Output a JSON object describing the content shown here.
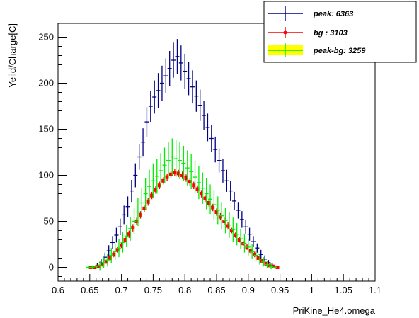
{
  "chart_data": {
    "type": "scatter",
    "xlabel": "PriKine_He4.omega",
    "ylabel": "Yeild/Charge[C]",
    "xlim": [
      0.6,
      1.1
    ],
    "ylim": [
      -15,
      265
    ],
    "x_ticks": [
      "0.6",
      "0.65",
      "0.7",
      "0.75",
      "0.8",
      "0.85",
      "0.9",
      "0.95",
      "1",
      "1.05",
      "1.1"
    ],
    "y_ticks": [
      "0",
      "50",
      "100",
      "150",
      "200",
      "250"
    ],
    "legend_position": "top-right",
    "series": [
      {
        "name": "peak: 6363",
        "color": "#000080",
        "marker": "cross",
        "points": [
          [
            0.65,
            0,
            1
          ],
          [
            0.656,
            0,
            1
          ],
          [
            0.662,
            2,
            3
          ],
          [
            0.668,
            5,
            4
          ],
          [
            0.674,
            11,
            5
          ],
          [
            0.68,
            18,
            6
          ],
          [
            0.686,
            27,
            7
          ],
          [
            0.692,
            35,
            8
          ],
          [
            0.698,
            44,
            9
          ],
          [
            0.704,
            57,
            10
          ],
          [
            0.71,
            66,
            11
          ],
          [
            0.716,
            83,
            12
          ],
          [
            0.722,
            100,
            13
          ],
          [
            0.728,
            120,
            14
          ],
          [
            0.734,
            136,
            15
          ],
          [
            0.74,
            158,
            16
          ],
          [
            0.746,
            175,
            17
          ],
          [
            0.752,
            185,
            18
          ],
          [
            0.758,
            192,
            19
          ],
          [
            0.764,
            200,
            19
          ],
          [
            0.77,
            208,
            19
          ],
          [
            0.776,
            216,
            19
          ],
          [
            0.782,
            225,
            19
          ],
          [
            0.788,
            229,
            19
          ],
          [
            0.794,
            222,
            19
          ],
          [
            0.8,
            213,
            19
          ],
          [
            0.806,
            205,
            18
          ],
          [
            0.812,
            196,
            18
          ],
          [
            0.818,
            186,
            17
          ],
          [
            0.824,
            176,
            17
          ],
          [
            0.83,
            165,
            16
          ],
          [
            0.836,
            152,
            15
          ],
          [
            0.842,
            140,
            15
          ],
          [
            0.848,
            128,
            14
          ],
          [
            0.854,
            116,
            13
          ],
          [
            0.86,
            105,
            13
          ],
          [
            0.866,
            94,
            12
          ],
          [
            0.872,
            83,
            11
          ],
          [
            0.878,
            72,
            10
          ],
          [
            0.884,
            62,
            9
          ],
          [
            0.89,
            52,
            9
          ],
          [
            0.896,
            44,
            8
          ],
          [
            0.902,
            36,
            7
          ],
          [
            0.908,
            28,
            6
          ],
          [
            0.914,
            21,
            5
          ],
          [
            0.92,
            14,
            5
          ],
          [
            0.926,
            9,
            4
          ],
          [
            0.932,
            5,
            3
          ],
          [
            0.938,
            2,
            2
          ],
          [
            0.944,
            0,
            1
          ]
        ]
      },
      {
        "name": "bg  : 3103",
        "color": "#ff0000",
        "marker": "dot",
        "points": [
          [
            0.652,
            0,
            1
          ],
          [
            0.658,
            0,
            1
          ],
          [
            0.664,
            1,
            1
          ],
          [
            0.67,
            3,
            2
          ],
          [
            0.676,
            6,
            2
          ],
          [
            0.682,
            10,
            3
          ],
          [
            0.688,
            14,
            3
          ],
          [
            0.694,
            19,
            3
          ],
          [
            0.7,
            24,
            3
          ],
          [
            0.706,
            30,
            3
          ],
          [
            0.712,
            36,
            4
          ],
          [
            0.718,
            43,
            4
          ],
          [
            0.724,
            50,
            4
          ],
          [
            0.73,
            57,
            4
          ],
          [
            0.736,
            64,
            4
          ],
          [
            0.742,
            71,
            4
          ],
          [
            0.748,
            78,
            4
          ],
          [
            0.754,
            84,
            4
          ],
          [
            0.76,
            89,
            4
          ],
          [
            0.766,
            94,
            4
          ],
          [
            0.772,
            98,
            4
          ],
          [
            0.778,
            101,
            4
          ],
          [
            0.784,
            103,
            4
          ],
          [
            0.79,
            102,
            4
          ],
          [
            0.796,
            100,
            4
          ],
          [
            0.802,
            97,
            4
          ],
          [
            0.808,
            93,
            4
          ],
          [
            0.814,
            89,
            4
          ],
          [
            0.82,
            85,
            4
          ],
          [
            0.826,
            80,
            4
          ],
          [
            0.832,
            75,
            4
          ],
          [
            0.838,
            70,
            4
          ],
          [
            0.844,
            65,
            4
          ],
          [
            0.85,
            60,
            4
          ],
          [
            0.856,
            55,
            4
          ],
          [
            0.862,
            50,
            4
          ],
          [
            0.868,
            45,
            4
          ],
          [
            0.874,
            40,
            3
          ],
          [
            0.88,
            35,
            3
          ],
          [
            0.886,
            30,
            3
          ],
          [
            0.892,
            26,
            3
          ],
          [
            0.898,
            22,
            3
          ],
          [
            0.904,
            18,
            3
          ],
          [
            0.91,
            14,
            3
          ],
          [
            0.916,
            10,
            2
          ],
          [
            0.922,
            7,
            2
          ],
          [
            0.928,
            4,
            2
          ],
          [
            0.934,
            2,
            1
          ],
          [
            0.94,
            1,
            1
          ],
          [
            0.946,
            0,
            1
          ]
        ]
      },
      {
        "name": "peak-bg: 3259",
        "color": "#00ee00",
        "marker": "cross",
        "points": [
          [
            0.648,
            0,
            2
          ],
          [
            0.654,
            0,
            2
          ],
          [
            0.66,
            1,
            3
          ],
          [
            0.666,
            2,
            5
          ],
          [
            0.672,
            5,
            6
          ],
          [
            0.678,
            8,
            7
          ],
          [
            0.684,
            13,
            8
          ],
          [
            0.69,
            17,
            9
          ],
          [
            0.696,
            21,
            10
          ],
          [
            0.702,
            27,
            11
          ],
          [
            0.708,
            34,
            12
          ],
          [
            0.714,
            42,
            13
          ],
          [
            0.72,
            50,
            14
          ],
          [
            0.726,
            60,
            15
          ],
          [
            0.732,
            70,
            16
          ],
          [
            0.738,
            80,
            17
          ],
          [
            0.744,
            88,
            18
          ],
          [
            0.75,
            94,
            19
          ],
          [
            0.756,
            99,
            19
          ],
          [
            0.762,
            105,
            19
          ],
          [
            0.768,
            111,
            19
          ],
          [
            0.774,
            116,
            20
          ],
          [
            0.78,
            120,
            20
          ],
          [
            0.786,
            118,
            20
          ],
          [
            0.792,
            116,
            20
          ],
          [
            0.798,
            113,
            19
          ],
          [
            0.804,
            108,
            19
          ],
          [
            0.81,
            104,
            19
          ],
          [
            0.816,
            98,
            18
          ],
          [
            0.822,
            92,
            18
          ],
          [
            0.828,
            86,
            17
          ],
          [
            0.834,
            80,
            17
          ],
          [
            0.84,
            74,
            16
          ],
          [
            0.846,
            68,
            16
          ],
          [
            0.852,
            62,
            15
          ],
          [
            0.858,
            56,
            15
          ],
          [
            0.864,
            51,
            14
          ],
          [
            0.87,
            46,
            14
          ],
          [
            0.876,
            41,
            13
          ],
          [
            0.882,
            36,
            12
          ],
          [
            0.888,
            31,
            11
          ],
          [
            0.894,
            26,
            10
          ],
          [
            0.9,
            22,
            9
          ],
          [
            0.906,
            17,
            8
          ],
          [
            0.912,
            13,
            7
          ],
          [
            0.918,
            9,
            6
          ],
          [
            0.924,
            6,
            5
          ],
          [
            0.93,
            3,
            4
          ],
          [
            0.936,
            1,
            3
          ],
          [
            0.942,
            0,
            2
          ]
        ]
      }
    ]
  }
}
